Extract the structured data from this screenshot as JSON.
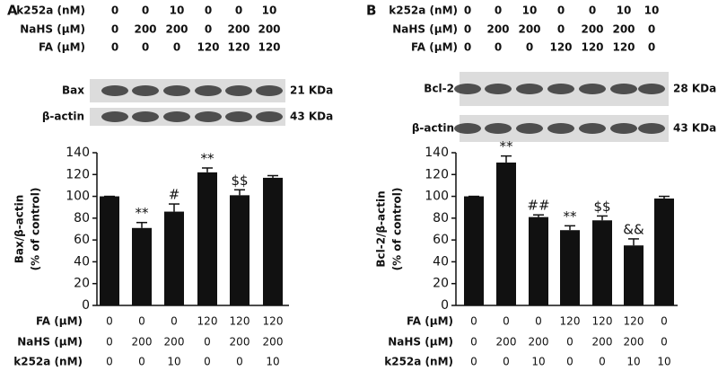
{
  "chart_data": [
    {
      "type": "bar",
      "panel": "A",
      "header_rows": [
        {
          "label": "k252a (nM)",
          "values": [
            0,
            0,
            10,
            0,
            0,
            10
          ]
        },
        {
          "label": "NaHS (μM)",
          "values": [
            0,
            200,
            200,
            0,
            200,
            200
          ]
        },
        {
          "label": "FA (μM)",
          "values": [
            0,
            0,
            0,
            120,
            120,
            120
          ]
        }
      ],
      "blots": [
        {
          "label": "Bax",
          "size": "21 KDa"
        },
        {
          "label": "β-actin",
          "size": "43 KDa"
        }
      ],
      "ylabel": [
        "Bax/β-actin",
        "(% of control)"
      ],
      "values": [
        100,
        71,
        86,
        122,
        101,
        117
      ],
      "errors": [
        0,
        5,
        7,
        4,
        5,
        2
      ],
      "annotations": [
        null,
        "**",
        "#",
        "**",
        "$$",
        null
      ],
      "color": "#111111",
      "ylim": [
        0,
        140
      ],
      "yticks": [
        0,
        20,
        40,
        60,
        80,
        100,
        120,
        140
      ],
      "condition_rows": [
        {
          "label": "FA (μM)",
          "values": [
            0,
            0,
            0,
            120,
            120,
            120
          ]
        },
        {
          "label": "NaHS (μM)",
          "values": [
            0,
            200,
            200,
            0,
            200,
            200
          ]
        },
        {
          "label": "k252a (nM)",
          "values": [
            0,
            0,
            10,
            0,
            0,
            10
          ]
        }
      ]
    },
    {
      "type": "bar",
      "panel": "B",
      "header_rows": [
        {
          "label": "k252a (nM)",
          "values": [
            0,
            0,
            10,
            0,
            0,
            10,
            10
          ]
        },
        {
          "label": "NaHS (μM)",
          "values": [
            0,
            200,
            200,
            0,
            200,
            200,
            0
          ]
        },
        {
          "label": "FA (μM)",
          "values": [
            0,
            0,
            0,
            120,
            120,
            120,
            0
          ]
        }
      ],
      "blots": [
        {
          "label": "Bcl-2",
          "size": "28 KDa"
        },
        {
          "label": "β-actin",
          "size": "43 KDa"
        }
      ],
      "ylabel": [
        "Bcl-2/β-actin",
        "(% of control)"
      ],
      "values": [
        100,
        131,
        81,
        69,
        78,
        55,
        98
      ],
      "errors": [
        0,
        6,
        2,
        4,
        4,
        6,
        2
      ],
      "annotations": [
        null,
        "**",
        "##",
        "**",
        "$$",
        "&&",
        null
      ],
      "color": "#111111",
      "ylim": [
        0,
        140
      ],
      "yticks": [
        0,
        20,
        40,
        60,
        80,
        100,
        120,
        140
      ],
      "condition_rows": [
        {
          "label": "FA (μM)",
          "values": [
            0,
            0,
            0,
            120,
            120,
            120,
            0
          ]
        },
        {
          "label": "NaHS (μM)",
          "values": [
            0,
            200,
            200,
            0,
            200,
            200,
            0
          ]
        },
        {
          "label": "k252a (nM)",
          "values": [
            0,
            0,
            10,
            0,
            0,
            10,
            10
          ]
        }
      ]
    }
  ]
}
